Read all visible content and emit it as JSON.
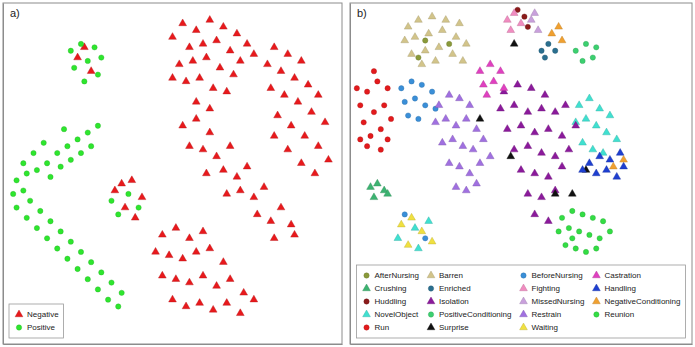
{
  "chart_data": [
    {
      "type": "scatter",
      "title": "a)",
      "xlim": [
        0,
        100
      ],
      "ylim": [
        0,
        100
      ],
      "tick_labels": false,
      "grid": false,
      "legend": "lower left",
      "series": [
        {
          "name": "Negative",
          "color": "#e8191c",
          "marker": "triangle",
          "x": [
            50,
            53,
            57,
            61,
            65,
            69,
            72,
            55,
            59,
            63,
            67,
            70,
            52,
            56,
            60,
            64,
            68,
            54,
            58,
            62,
            66,
            57,
            61,
            74,
            50,
            80,
            84,
            88,
            78,
            82,
            86,
            90,
            93,
            79,
            83,
            87,
            91,
            95,
            81,
            85,
            89,
            93,
            96,
            84,
            88,
            92,
            80,
            53,
            57,
            61,
            55,
            59,
            63,
            67,
            65,
            69,
            72,
            70,
            74,
            77,
            75,
            79,
            82,
            85,
            80,
            86,
            60,
            66,
            47,
            51,
            55,
            59,
            45,
            49,
            53,
            57,
            61,
            65,
            47,
            51,
            55,
            59,
            63,
            67,
            71,
            50,
            54,
            58,
            62,
            66,
            70,
            74,
            22,
            26,
            24,
            33,
            36,
            39,
            41,
            35,
            38
          ],
          "values": [
            90,
            94,
            92,
            95,
            93,
            91,
            88,
            87,
            88,
            89,
            86,
            83,
            82,
            83,
            84,
            81,
            79,
            77,
            78,
            75,
            74,
            71,
            69,
            85,
            78,
            87,
            85,
            83,
            82,
            80,
            78,
            76,
            73,
            75,
            73,
            71,
            68,
            65,
            67,
            64,
            61,
            58,
            54,
            57,
            53,
            50,
            61,
            64,
            66,
            62,
            58,
            57,
            55,
            58,
            51,
            49,
            52,
            45,
            43,
            46,
            38,
            36,
            40,
            35,
            31,
            32,
            50,
            44,
            32,
            34,
            31,
            33,
            27,
            26,
            25,
            27,
            28,
            24,
            20,
            19,
            18,
            20,
            17,
            19,
            15,
            13,
            11,
            12,
            10,
            12,
            9,
            13,
            84,
            80,
            87,
            45,
            40,
            37,
            43,
            47,
            48
          ]
        },
        {
          "name": "Positive",
          "color": "#2ee62e",
          "marker": "circle",
          "x": [
            20,
            23,
            27,
            29,
            21,
            25,
            28,
            24,
            28,
            25,
            22,
            26,
            19,
            23,
            16,
            20,
            13,
            17,
            10,
            14,
            7,
            4,
            9,
            12,
            18,
            6,
            3,
            6,
            4,
            8,
            7,
            11,
            10,
            14,
            13,
            17,
            16,
            20,
            19,
            23,
            22,
            26,
            25,
            29,
            28,
            32,
            31,
            35,
            34,
            32,
            37,
            40,
            34
          ],
          "values": [
            86,
            88,
            87,
            84,
            81,
            83,
            79,
            77,
            64,
            62,
            60,
            58,
            58,
            56,
            56,
            54,
            53,
            52,
            51,
            49,
            50,
            48,
            56,
            59,
            63,
            53,
            44,
            45,
            40,
            42,
            37,
            39,
            34,
            36,
            31,
            33,
            28,
            30,
            25,
            27,
            22,
            24,
            19,
            21,
            16,
            18,
            13,
            15,
            11,
            42,
            44,
            40,
            38
          ]
        }
      ]
    },
    {
      "type": "scatter",
      "title": "b)",
      "xlim": [
        0,
        100
      ],
      "ylim": [
        0,
        100
      ],
      "tick_labels": false,
      "grid": false,
      "legend": "lower center",
      "series": [
        {
          "name": "AfterNursing",
          "color": "#8a9a3a",
          "marker": "circle",
          "x": [
            22,
            29,
            20
          ],
          "values": [
            89,
            88,
            84
          ]
        },
        {
          "name": "Crushing",
          "color": "#3cb371",
          "marker": "triangle",
          "x": [
            6,
            8,
            10,
            7,
            11
          ],
          "values": [
            46,
            47,
            45,
            43,
            44
          ]
        },
        {
          "name": "Huddling",
          "color": "#8b1a1a",
          "marker": "circle",
          "x": [
            49,
            51,
            52
          ],
          "values": [
            98,
            96,
            93
          ]
        },
        {
          "name": "NovelObject",
          "color": "#40e0d0",
          "marker": "triangle",
          "x": [
            67,
            70,
            73,
            76,
            66,
            69,
            72,
            75,
            78,
            68,
            71,
            74,
            14,
            19,
            23,
            20
          ],
          "values": [
            70,
            72,
            69,
            67,
            65,
            66,
            64,
            62,
            60,
            59,
            57,
            56,
            31,
            34,
            36,
            28
          ]
        },
        {
          "name": "Run",
          "color": "#e31a1c",
          "marker": "circle",
          "x": [
            3,
            5,
            8,
            11,
            4,
            7,
            10,
            12,
            6,
            9,
            11,
            3,
            7,
            5,
            9,
            2
          ],
          "values": [
            70,
            74,
            77,
            75,
            65,
            68,
            70,
            66,
            61,
            63,
            60,
            60,
            80,
            58,
            57,
            75
          ]
        },
        {
          "name": "Barren",
          "color": "#d2c48a",
          "marker": "triangle",
          "x": [
            17,
            20,
            24,
            28,
            32,
            16,
            19,
            23,
            27,
            31,
            34,
            18,
            22,
            26,
            30,
            33,
            21,
            25
          ],
          "values": [
            93,
            95,
            96,
            95,
            94,
            89,
            90,
            91,
            92,
            90,
            88,
            85,
            86,
            87,
            85,
            83,
            82,
            83
          ]
        },
        {
          "name": "Enriched",
          "color": "#2a6f8f",
          "marker": "circle",
          "x": [
            56,
            58,
            60,
            57
          ],
          "values": [
            86,
            88,
            86,
            84
          ]
        },
        {
          "name": "Isolation",
          "color": "#8b1a9b",
          "marker": "triangle",
          "x": [
            45,
            49,
            53,
            57,
            44,
            48,
            52,
            56,
            60,
            46,
            50,
            54,
            58,
            62,
            48,
            52,
            56,
            60,
            64,
            50,
            54,
            58,
            62,
            52,
            56,
            60,
            54,
            58,
            66,
            63
          ],
          "values": [
            74,
            76,
            75,
            73,
            69,
            70,
            68,
            69,
            68,
            63,
            64,
            62,
            63,
            61,
            57,
            58,
            56,
            55,
            57,
            51,
            50,
            49,
            52,
            44,
            43,
            45,
            38,
            36,
            64,
            70
          ]
        },
        {
          "name": "PositiveConditioning",
          "color": "#3cd070",
          "marker": "circle",
          "x": [
            66,
            69,
            72,
            68,
            71
          ],
          "values": [
            86,
            88,
            87,
            83,
            84
          ]
        },
        {
          "name": "Surprise",
          "color": "#111111",
          "marker": "triangle",
          "x": [
            48,
            60,
            65,
            38,
            69,
            47
          ],
          "values": [
            88,
            44,
            44,
            66,
            51,
            55
          ]
        },
        {
          "name": "BeforeNursing",
          "color": "#3a8fd8",
          "marker": "circle",
          "x": [
            15,
            18,
            21,
            24,
            16,
            19,
            22,
            25,
            17,
            20,
            16,
            22
          ],
          "values": [
            75,
            77,
            76,
            74,
            71,
            72,
            70,
            69,
            67,
            66,
            38,
            31
          ]
        },
        {
          "name": "Fighting",
          "color": "#f08cc0",
          "marker": "triangle",
          "x": [
            46,
            48,
            50,
            47
          ],
          "values": [
            95,
            97,
            94,
            92
          ]
        },
        {
          "name": "MissedNursing",
          "color": "#c9a0dc",
          "marker": "triangle",
          "x": [
            53,
            55,
            54
          ],
          "values": [
            95,
            92,
            97
          ]
        },
        {
          "name": "Restrain",
          "color": "#a070e0",
          "marker": "triangle",
          "x": [
            26,
            29,
            32,
            35,
            25,
            28,
            31,
            34,
            37,
            27,
            30,
            33,
            36,
            39,
            29,
            32,
            35,
            38,
            41,
            31,
            34,
            37
          ],
          "values": [
            70,
            73,
            72,
            70,
            65,
            66,
            64,
            66,
            63,
            59,
            60,
            58,
            57,
            60,
            53,
            52,
            50,
            53,
            55,
            46,
            45,
            47
          ]
        },
        {
          "name": "Waiting",
          "color": "#f0e040",
          "marker": "triangle",
          "x": [
            15,
            18,
            21,
            24,
            17
          ],
          "values": [
            35,
            37,
            33,
            30,
            29
          ]
        },
        {
          "name": "Castration",
          "color": "#e040c0",
          "marker": "triangle",
          "x": [
            38,
            41,
            44,
            39,
            42,
            45,
            40
          ],
          "values": [
            80,
            82,
            80,
            76,
            77,
            75,
            73
          ]
        },
        {
          "name": "Handling",
          "color": "#1e3fd0",
          "marker": "triangle",
          "x": [
            70,
            73,
            76,
            79,
            72,
            75,
            78,
            80,
            68
          ],
          "values": [
            53,
            55,
            54,
            56,
            50,
            51,
            49,
            52,
            51
          ]
        },
        {
          "name": "NegativeConditioning",
          "color": "#f0a030",
          "marker": "triangle",
          "x": [
            80,
            77,
            59,
            61,
            62
          ],
          "values": [
            54,
            52,
            91,
            93,
            89
          ]
        },
        {
          "name": "Reunion",
          "color": "#33dd44",
          "marker": "circle",
          "x": [
            62,
            65,
            68,
            71,
            74,
            61,
            64,
            67,
            70,
            73,
            76,
            63,
            66,
            69,
            72,
            65
          ],
          "values": [
            37,
            39,
            38,
            37,
            36,
            33,
            34,
            33,
            32,
            31,
            33,
            29,
            28,
            27,
            28,
            31
          ]
        }
      ]
    }
  ]
}
